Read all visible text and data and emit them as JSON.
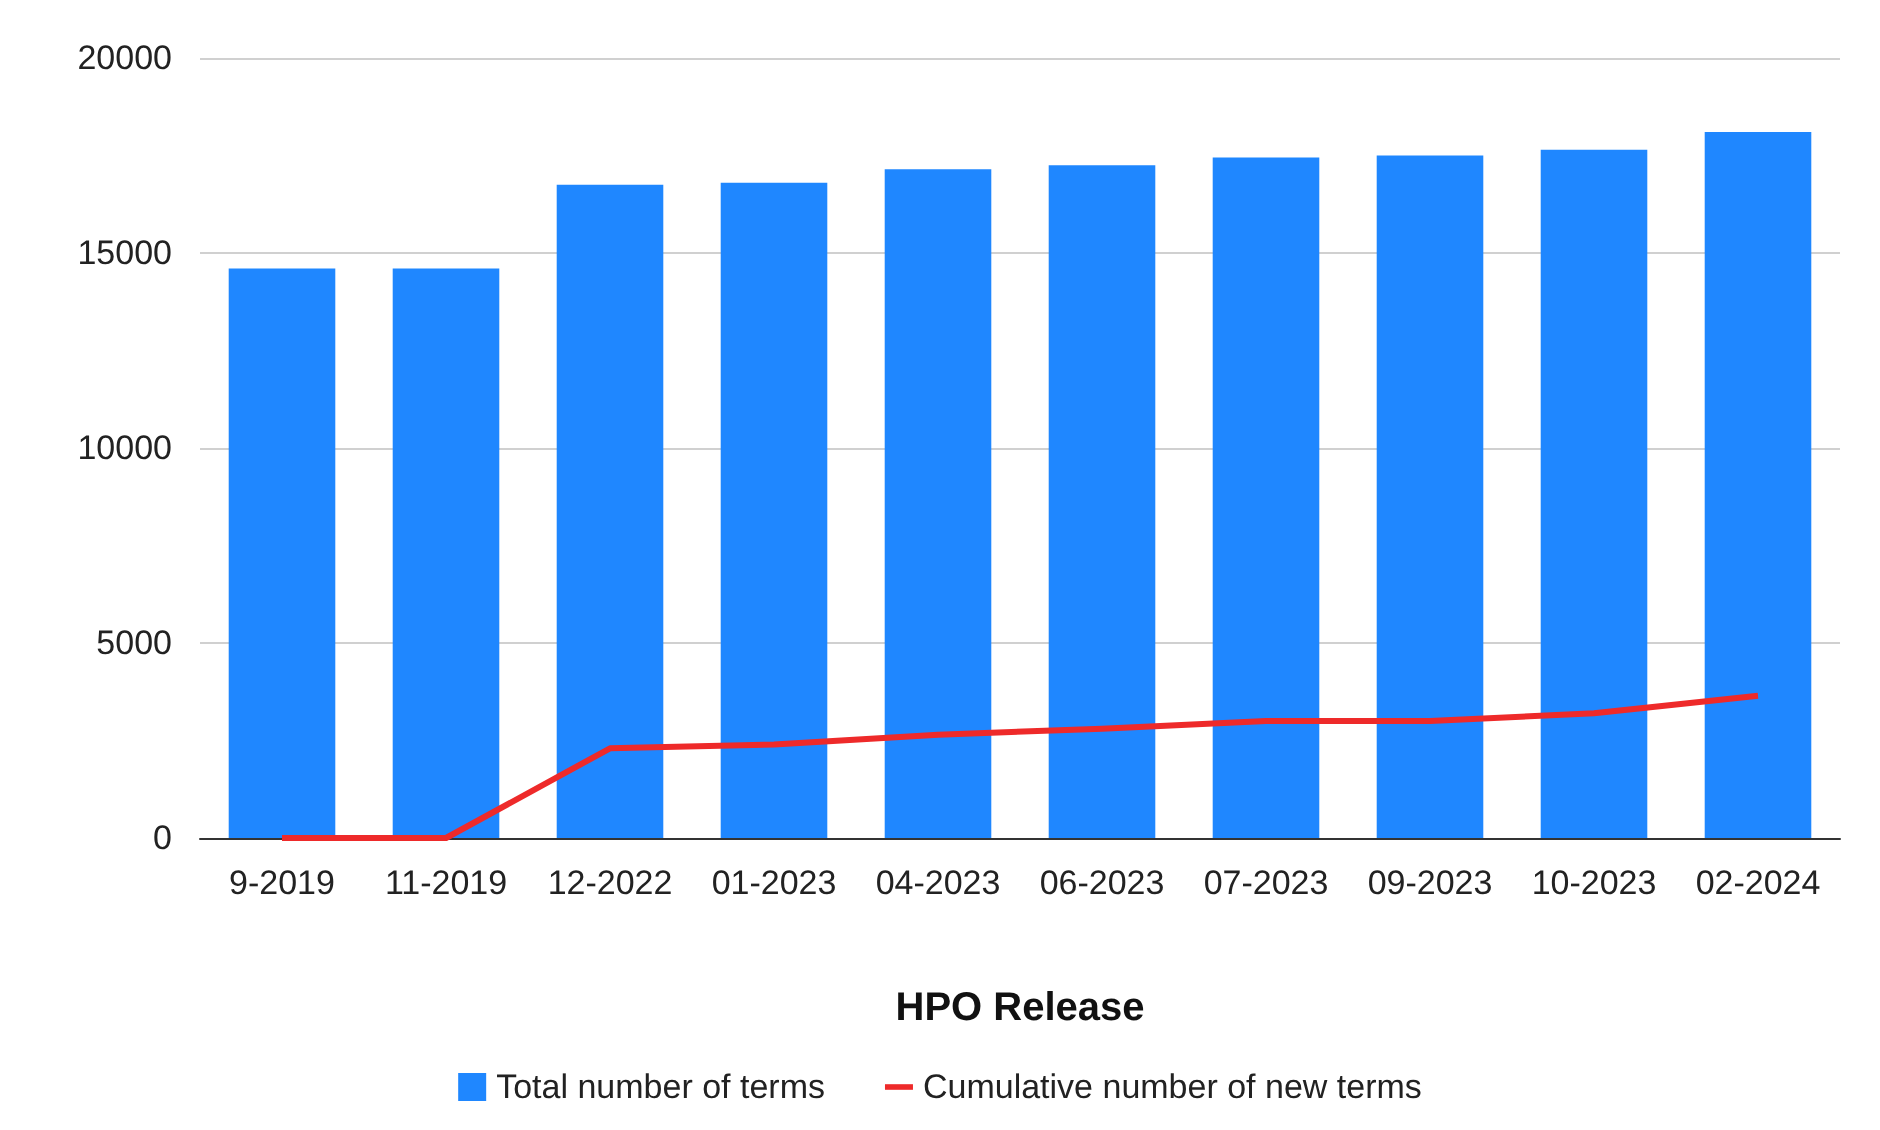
{
  "chart_data": {
    "type": "bar",
    "xlabel": "HPO Release",
    "categories": [
      "9-2019",
      "11-2019",
      "12-2022",
      "01-2023",
      "04-2023",
      "06-2023",
      "07-2023",
      "09-2023",
      "10-2023",
      "02-2024"
    ],
    "series": [
      {
        "name": "Total number of terms",
        "color": "#1f87ff",
        "values": [
          14600,
          14600,
          16750,
          16800,
          17150,
          17250,
          17450,
          17500,
          17650,
          18100
        ]
      },
      {
        "name": "Cumulative number of new terms",
        "type": "line",
        "color": "#ee2a2a",
        "values": [
          0,
          0,
          2300,
          2400,
          2650,
          2800,
          3000,
          3000,
          3200,
          3650
        ]
      }
    ],
    "ylim": [
      0,
      20000
    ],
    "yticks": [
      0,
      5000,
      10000,
      15000,
      20000
    ],
    "grid": "y",
    "legend": "bottom",
    "marker": "none",
    "line_style": "solid"
  }
}
